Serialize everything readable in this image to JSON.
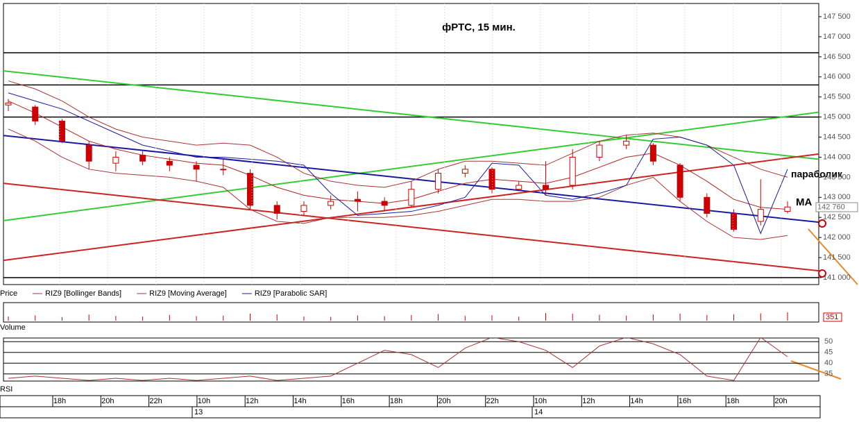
{
  "chart_data": {
    "type": "candlestick",
    "title": "фРТС,  15 мин.",
    "annotations": [
      "параболик",
      "MA"
    ],
    "last_price_label": "142 760",
    "legend": [
      "Price",
      "RIZ9 [Bollinger Bands]",
      "RIZ9 [Moving Average]",
      "RIZ9 [Parabolic SAR]"
    ],
    "up_color": "#ffffff",
    "down_color": "#cc0000",
    "candle_edge": "#cc0000",
    "ylim": [
      141000,
      147500
    ],
    "yticks": [
      {
        "value": 141000,
        "label": "141 000"
      },
      {
        "value": 141500,
        "label": "141 500"
      },
      {
        "value": 142000,
        "label": "142 000"
      },
      {
        "value": 142500,
        "label": "142 500"
      },
      {
        "value": 143000,
        "label": "143 000"
      },
      {
        "value": 143500,
        "label": "143 500"
      },
      {
        "value": 144000,
        "label": "144 000"
      },
      {
        "value": 144500,
        "label": "144 500"
      },
      {
        "value": 145000,
        "label": "145 000"
      },
      {
        "value": 145500,
        "label": "145 500"
      },
      {
        "value": 146000,
        "label": "146 000"
      },
      {
        "value": 146500,
        "label": "146 500"
      },
      {
        "value": 147000,
        "label": "147 000"
      },
      {
        "value": 147500,
        "label": "147 500"
      }
    ],
    "grid": true,
    "open": [
      145300,
      145250,
      144900,
      144300,
      143850,
      144050,
      143900,
      143800,
      143700,
      143600,
      142800,
      142650,
      142800,
      142950,
      142900,
      142800,
      143200,
      143600,
      143700,
      143200,
      143300,
      143300,
      144000,
      144300,
      144300,
      143800,
      143000,
      142600,
      142400,
      142650
    ],
    "high": [
      145450,
      145300,
      144950,
      144400,
      144150,
      144150,
      144000,
      143900,
      143950,
      143700,
      142900,
      142900,
      143050,
      143150,
      143000,
      143400,
      143700,
      143800,
      143750,
      143400,
      143900,
      144200,
      144400,
      144550,
      144350,
      143850,
      143100,
      142700,
      143450,
      142900
    ],
    "low": [
      145150,
      144800,
      144350,
      143700,
      143650,
      143800,
      143650,
      143400,
      143550,
      142700,
      142450,
      142550,
      142700,
      142650,
      142650,
      142750,
      143100,
      143500,
      143100,
      143150,
      143050,
      143200,
      143900,
      144200,
      143800,
      142900,
      142500,
      142150,
      142300,
      142600
    ],
    "close": [
      145350,
      144900,
      144400,
      143900,
      144000,
      143900,
      143800,
      143700,
      143700,
      142800,
      142600,
      142800,
      142900,
      142900,
      142800,
      143200,
      143600,
      143700,
      143200,
      143300,
      143200,
      144000,
      144300,
      144400,
      143900,
      143000,
      142600,
      142200,
      142700,
      142760
    ],
    "series": [
      {
        "name": "RIZ9 [Moving Average]",
        "color": "#b22222",
        "values": [
          145400,
          145100,
          144750,
          144400,
          144200,
          144050,
          143950,
          143850,
          143800,
          143550,
          143250,
          143050,
          142950,
          142900,
          142850,
          142950,
          143150,
          143350,
          143450,
          143400,
          143350,
          143500,
          143750,
          144000,
          144100,
          143800,
          143400,
          142950,
          142750,
          142700
        ]
      },
      {
        "name": "RIZ9 [Bollinger Bands]",
        "color": "#a33",
        "values": [
          145900,
          145700,
          145400,
          145000,
          144700,
          144500,
          144400,
          144300,
          144350,
          144300,
          144000,
          143600,
          143400,
          143300,
          143250,
          143400,
          143700,
          143900,
          143900,
          143850,
          143800,
          144100,
          144400,
          144550,
          144600,
          144500,
          144300,
          144000,
          143700,
          143500
        ]
      },
      {
        "name": "RIZ9 [Bollinger Bands]",
        "color": "#a33",
        "values": [
          144700,
          144400,
          144000,
          143700,
          143600,
          143550,
          143500,
          143400,
          143250,
          142700,
          142400,
          142350,
          142500,
          142500,
          142500,
          142550,
          142650,
          142800,
          142950,
          142950,
          142900,
          142900,
          143000,
          143300,
          143500,
          142900,
          142400,
          142000,
          141950,
          142050
        ]
      },
      {
        "name": "RIZ9 [Parabolic SAR]",
        "color": "#1a1aa0",
        "values": [
          145600,
          145400,
          145200,
          144900,
          144600,
          144300,
          144150,
          144000,
          144000,
          143950,
          143900,
          143800,
          143100,
          142550,
          142600,
          142650,
          142800,
          143000,
          143850,
          143800,
          143050,
          142950,
          143100,
          143300,
          144450,
          144500,
          144300,
          143800,
          142100,
          143700
        ]
      }
    ],
    "hlines": [
      146600,
      145800,
      145000,
      141000
    ],
    "hline_color": "#000000",
    "trendlines": [
      {
        "color": "#33cc33",
        "values": [
          146150,
          143950
        ]
      },
      {
        "color": "#33cc33",
        "values": [
          142420,
          145120
        ]
      },
      {
        "color": "#1a1aa0",
        "values": [
          144540,
          142380
        ]
      },
      {
        "color": "#cc2222",
        "values": [
          143350,
          141170
        ]
      },
      {
        "color": "#cc2222",
        "values": [
          141430,
          144080
        ]
      }
    ],
    "volume_title": "Volume",
    "volume_label": "351",
    "volume": [
      180,
      220,
      150,
      260,
      200,
      170,
      240,
      190,
      210,
      300,
      260,
      180,
      160,
      220,
      190,
      240,
      280,
      200,
      230,
      170,
      320,
      290,
      250,
      210,
      260,
      300,
      240,
      270,
      310,
      351
    ],
    "rsi_title": "RSI",
    "rsi_ylim": [
      31.7,
      51.7
    ],
    "rsi_yticks": [
      35,
      40,
      45,
      50
    ],
    "rsi": [
      33,
      34,
      33,
      32,
      33,
      32,
      33,
      32,
      33,
      34,
      32,
      33,
      34,
      40,
      46,
      44,
      38,
      47,
      52,
      50,
      46,
      38,
      48,
      52,
      49,
      44,
      34,
      32,
      52,
      43
    ],
    "time_labels": [
      "18h",
      "20h",
      "22h",
      "10h",
      "12h",
      "14h",
      "16h",
      "18h",
      "20h",
      "22h",
      "10h",
      "12h",
      "14h",
      "16h",
      "18h",
      "20h"
    ],
    "day_labels": [
      "13",
      "14"
    ]
  }
}
